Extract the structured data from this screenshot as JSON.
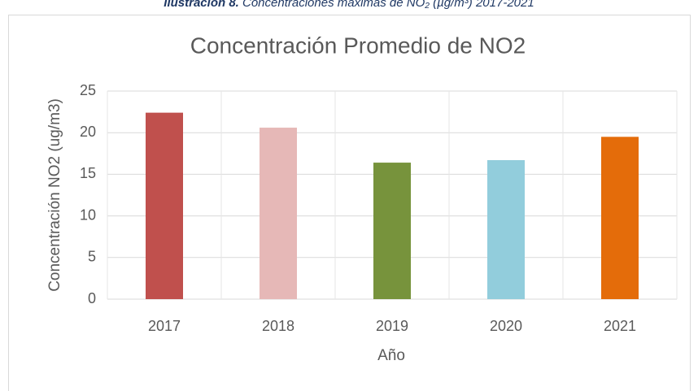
{
  "caption_label": "Ilustración 8.",
  "caption": "Concentraciones máximas de NO₂ (µg/m³) 2017-2021",
  "chart_data": {
    "type": "bar",
    "title": "Concentración Promedio de NO2",
    "x_label": "Año",
    "y_label": "Concentración NO2 (ug/m3)",
    "categories": [
      "2017",
      "2018",
      "2019",
      "2020",
      "2021"
    ],
    "values": [
      22.4,
      20.6,
      16.4,
      16.7,
      19.5
    ],
    "colors": [
      "#c0504d",
      "#e6b8b7",
      "#77933c",
      "#92cddc",
      "#e46c0a"
    ],
    "ylim": [
      0,
      25
    ],
    "yticks": [
      0,
      5,
      10,
      15,
      20,
      25
    ],
    "grid": true
  }
}
